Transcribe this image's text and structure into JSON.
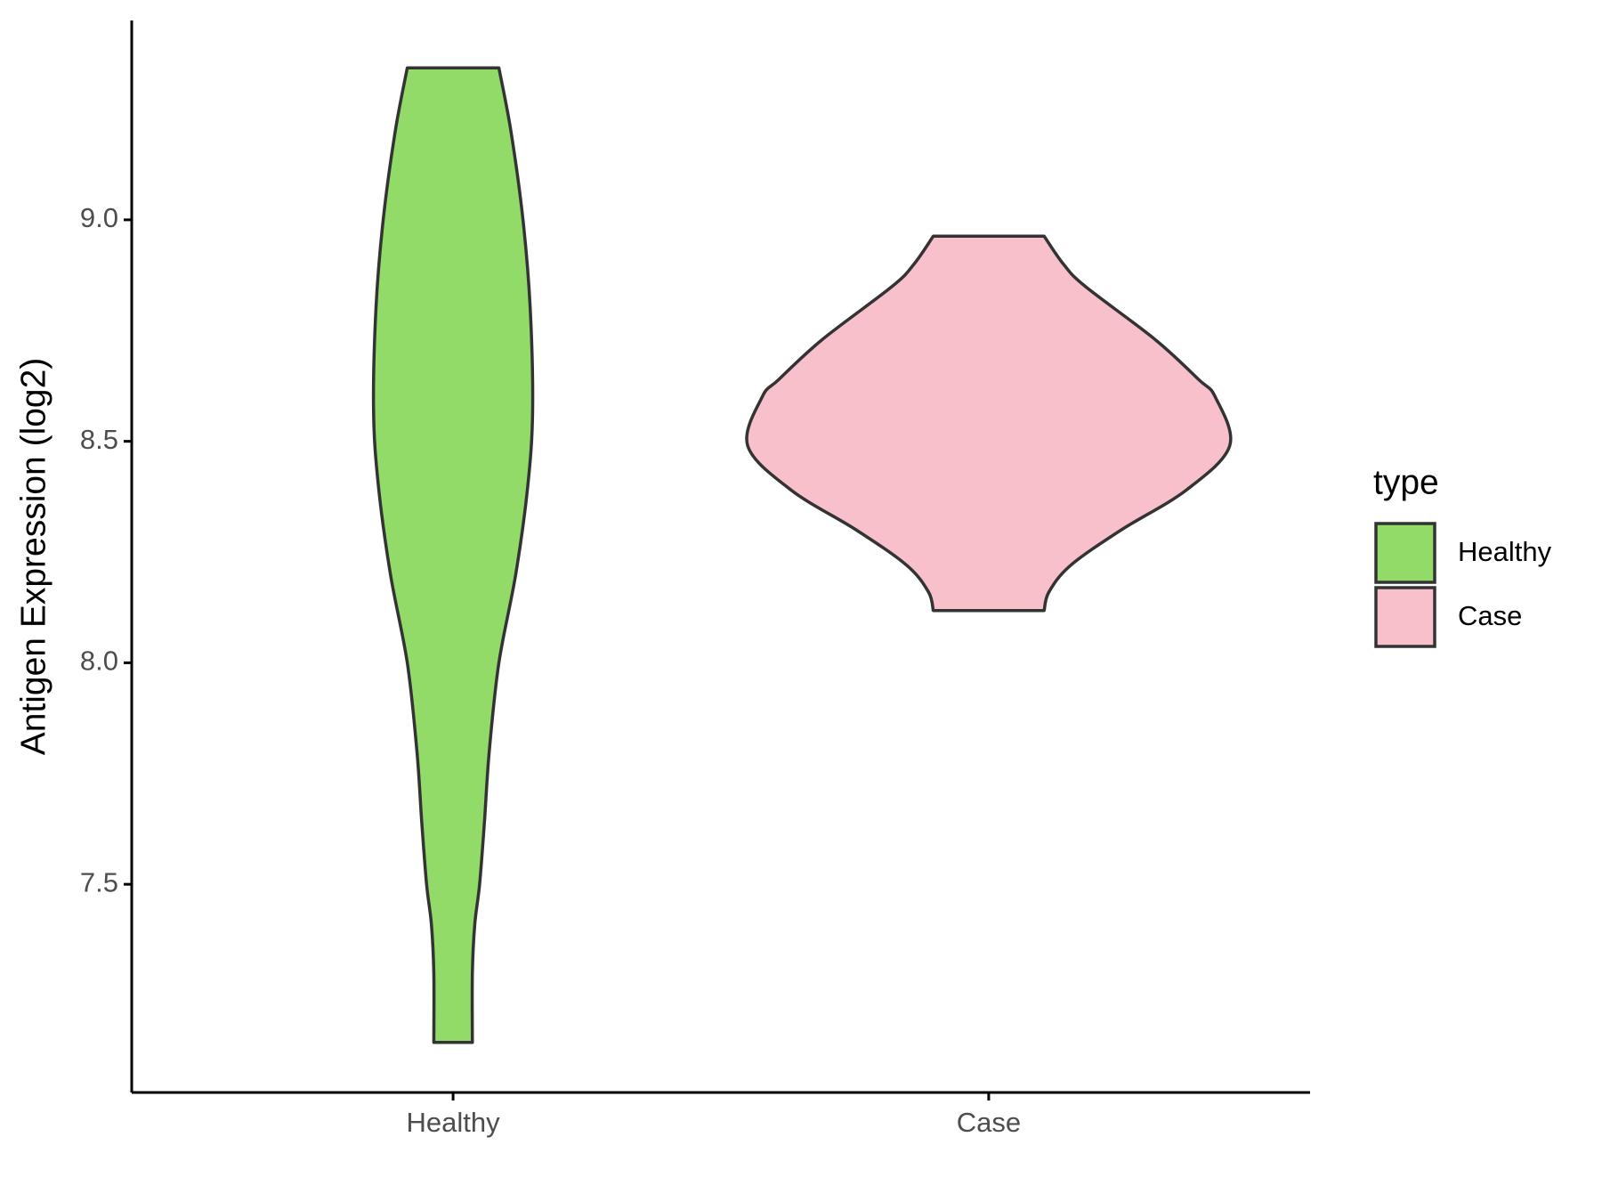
{
  "chart_data": {
    "type": "violin",
    "y_label": "Antigen Expression (log2)",
    "legend_title": "type",
    "categories": [
      "Healthy",
      "Case"
    ],
    "series": [
      {
        "name": "Healthy",
        "color": "#93db69",
        "y": [
          9.343,
          9.2,
          9.0,
          8.8,
          8.57,
          8.4,
          8.2,
          8.0,
          7.8,
          7.64,
          7.5,
          7.41,
          7.3,
          7.143
        ],
        "density": [
          0.19,
          0.24,
          0.29,
          0.32,
          0.33,
          0.31,
          0.26,
          0.19,
          0.15,
          0.13,
          0.11,
          0.09,
          0.08,
          0.08
        ]
      },
      {
        "name": "Case",
        "color": "#f8c0cb",
        "y": [
          8.963,
          8.9,
          8.85,
          8.73,
          8.64,
          8.6,
          8.49,
          8.39,
          8.3,
          8.22,
          8.16,
          8.118
        ],
        "density": [
          0.23,
          0.31,
          0.4,
          0.69,
          0.87,
          0.94,
          1.0,
          0.82,
          0.55,
          0.34,
          0.25,
          0.23
        ]
      }
    ],
    "ylim": [
      7.03,
      9.45
    ],
    "yticks": [
      {
        "value": 7.5,
        "label": "7.5"
      },
      {
        "value": 8,
        "label": "8.0"
      },
      {
        "value": 8.5,
        "label": "8.5"
      },
      {
        "value": 9,
        "label": "9.0"
      }
    ],
    "legend_position": "right"
  }
}
